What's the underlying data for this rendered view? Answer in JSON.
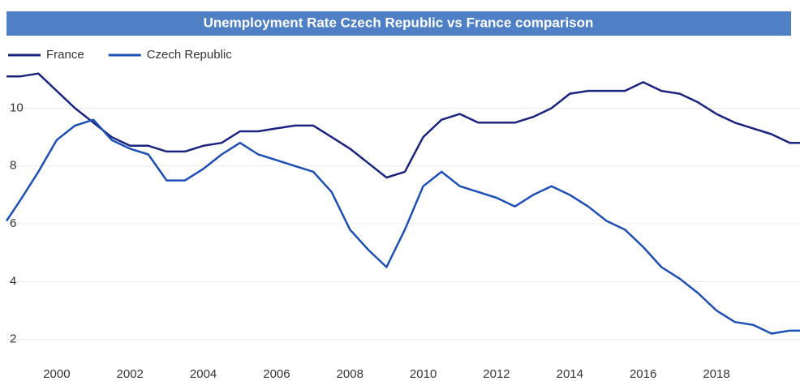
{
  "chart_data": {
    "type": "line",
    "title": "Unemployment Rate Czech Republic vs France comparison",
    "x": [
      1998.63,
      1999,
      1999.5,
      2000,
      2000.5,
      2001,
      2001.5,
      2002,
      2002.5,
      2003,
      2003.5,
      2004,
      2004.5,
      2005,
      2005.5,
      2006,
      2006.5,
      2007,
      2007.5,
      2008,
      2008.5,
      2009,
      2009.5,
      2010,
      2010.5,
      2011,
      2011.5,
      2012,
      2012.5,
      2013,
      2013.5,
      2014,
      2014.5,
      2015,
      2015.5,
      2016,
      2016.5,
      2017,
      2017.5,
      2018,
      2018.5,
      2019,
      2019.5,
      2020,
      2020.28
    ],
    "series": [
      {
        "name": "France",
        "color": "#1a237e",
        "values": [
          11.1,
          11.1,
          11.2,
          10.6,
          10.0,
          9.5,
          9.0,
          8.7,
          8.7,
          8.5,
          8.5,
          8.7,
          8.8,
          9.2,
          9.2,
          9.3,
          9.4,
          9.4,
          9.0,
          8.6,
          8.1,
          7.6,
          7.8,
          9.0,
          9.6,
          9.8,
          9.5,
          9.5,
          9.5,
          9.7,
          10.0,
          10.5,
          10.6,
          10.6,
          10.6,
          10.9,
          10.6,
          10.5,
          10.2,
          9.8,
          9.5,
          9.3,
          9.1,
          8.8,
          8.8
        ]
      },
      {
        "name": "Czech Republic",
        "color": "#1e4fb4",
        "values": [
          6.1,
          6.8,
          7.8,
          8.9,
          9.4,
          9.6,
          8.9,
          8.6,
          8.4,
          7.5,
          7.5,
          7.9,
          8.4,
          8.8,
          8.4,
          8.2,
          8.0,
          7.8,
          7.1,
          5.8,
          5.1,
          4.5,
          5.8,
          7.3,
          7.8,
          7.3,
          7.1,
          6.9,
          6.6,
          7.0,
          7.3,
          7.0,
          6.6,
          6.1,
          5.8,
          5.2,
          4.5,
          4.1,
          3.6,
          3.0,
          2.6,
          2.5,
          2.2,
          2.3,
          2.3
        ]
      }
    ],
    "xlim": [
      1998.63,
      2020.28
    ],
    "xticks": [
      2000,
      2002,
      2004,
      2006,
      2008,
      2010,
      2012,
      2014,
      2016,
      2018
    ],
    "ylim": [
      1.4,
      11.5
    ],
    "yticks": [
      2,
      4,
      6,
      8,
      10
    ],
    "grid": true,
    "legend": "top-left"
  }
}
